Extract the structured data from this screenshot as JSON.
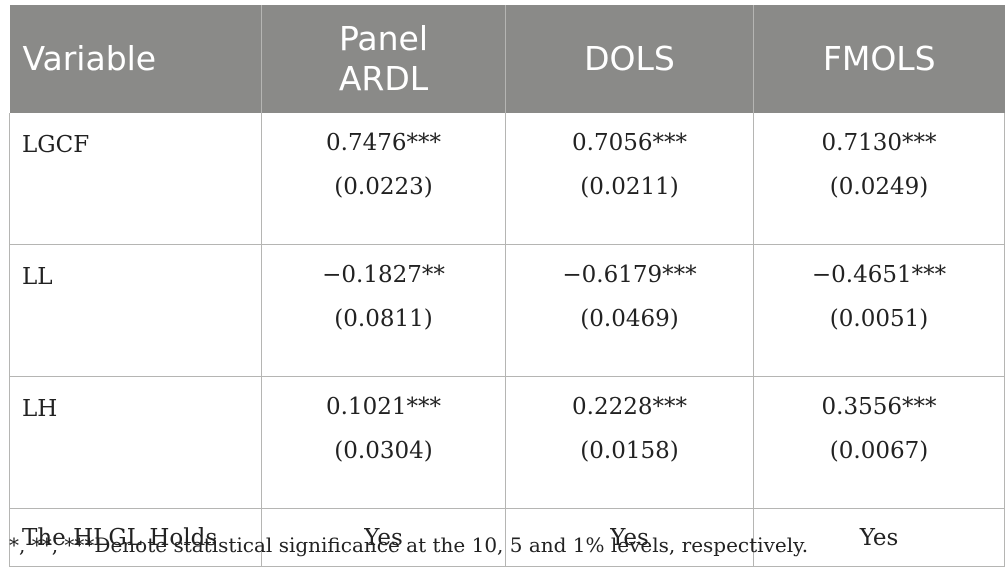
{
  "table": {
    "headers": [
      "Variable",
      "Panel ARDL",
      "DOLS",
      "FMOLS"
    ],
    "rows": [
      {
        "label": "LGCF",
        "cells": [
          {
            "coef": "0.7476***",
            "se": "(0.0223)"
          },
          {
            "coef": "0.7056***",
            "se": "(0.0211)"
          },
          {
            "coef": "0.7130***",
            "se": "(0.0249)"
          }
        ]
      },
      {
        "label": "LL",
        "cells": [
          {
            "coef": "−0.1827**",
            "se": "(0.0811)"
          },
          {
            "coef": "−0.6179***",
            "se": "(0.0469)"
          },
          {
            "coef": "−0.4651***",
            "se": "(0.0051)"
          }
        ]
      },
      {
        "label": "LH",
        "cells": [
          {
            "coef": "0.1021***",
            "se": "(0.0304)"
          },
          {
            "coef": "0.2228***",
            "se": "(0.0158)"
          },
          {
            "coef": "0.3556***",
            "se": "(0.0067)"
          }
        ]
      }
    ],
    "final_row": {
      "label": "The HLGL Holds",
      "values": [
        "Yes",
        "Yes",
        "Yes"
      ]
    }
  },
  "footnote": "*, **, ***Denote statistical significance at the 10, 5 and 1% levels, respectively."
}
